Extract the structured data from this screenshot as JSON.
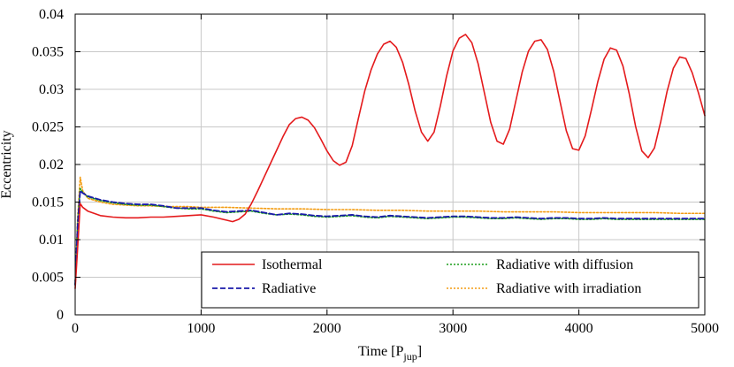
{
  "chart_data": {
    "type": "line",
    "xlabel": "Time [P",
    "xlabel_sub": "jup",
    "xlabel_end": "]",
    "ylabel": "Eccentricity",
    "xlim": [
      0,
      5000
    ],
    "ylim": [
      0,
      0.04
    ],
    "xticks": [
      0,
      1000,
      2000,
      3000,
      4000,
      5000
    ],
    "xtick_labels": [
      "0",
      "1000",
      "2000",
      "3000",
      "4000",
      "5000"
    ],
    "yticks": [
      0,
      0.005,
      0.01,
      0.015,
      0.02,
      0.025,
      0.03,
      0.035,
      0.04
    ],
    "ytick_labels": [
      "0",
      "0.005",
      "0.01",
      "0.015",
      "0.02",
      "0.025",
      "0.03",
      "0.035",
      "0.04"
    ],
    "grid": true,
    "legend_position": "bottom-right",
    "series": [
      {
        "name": "Isothermal",
        "color": "#e41a1c",
        "style": "solid",
        "points": [
          [
            0,
            0.0035
          ],
          [
            20,
            0.009
          ],
          [
            40,
            0.0148
          ],
          [
            60,
            0.0143
          ],
          [
            100,
            0.0138
          ],
          [
            150,
            0.0135
          ],
          [
            200,
            0.0132
          ],
          [
            300,
            0.013
          ],
          [
            400,
            0.0129
          ],
          [
            500,
            0.0129
          ],
          [
            600,
            0.013
          ],
          [
            700,
            0.013
          ],
          [
            800,
            0.0131
          ],
          [
            900,
            0.0132
          ],
          [
            1000,
            0.0133
          ],
          [
            1100,
            0.013
          ],
          [
            1200,
            0.0126
          ],
          [
            1250,
            0.0124
          ],
          [
            1300,
            0.0127
          ],
          [
            1350,
            0.0134
          ],
          [
            1400,
            0.0148
          ],
          [
            1450,
            0.0165
          ],
          [
            1500,
            0.0183
          ],
          [
            1550,
            0.0201
          ],
          [
            1600,
            0.0219
          ],
          [
            1650,
            0.0237
          ],
          [
            1700,
            0.0253
          ],
          [
            1750,
            0.0261
          ],
          [
            1800,
            0.0263
          ],
          [
            1850,
            0.0259
          ],
          [
            1900,
            0.0249
          ],
          [
            1950,
            0.0234
          ],
          [
            2000,
            0.0218
          ],
          [
            2050,
            0.0205
          ],
          [
            2100,
            0.0199
          ],
          [
            2150,
            0.0203
          ],
          [
            2200,
            0.0225
          ],
          [
            2250,
            0.0262
          ],
          [
            2300,
            0.0298
          ],
          [
            2350,
            0.0326
          ],
          [
            2400,
            0.0347
          ],
          [
            2450,
            0.036
          ],
          [
            2500,
            0.0364
          ],
          [
            2550,
            0.0356
          ],
          [
            2600,
            0.0336
          ],
          [
            2650,
            0.0306
          ],
          [
            2700,
            0.0271
          ],
          [
            2750,
            0.0243
          ],
          [
            2800,
            0.0231
          ],
          [
            2850,
            0.0243
          ],
          [
            2900,
            0.0278
          ],
          [
            2950,
            0.0318
          ],
          [
            3000,
            0.0351
          ],
          [
            3050,
            0.0368
          ],
          [
            3100,
            0.0373
          ],
          [
            3150,
            0.0362
          ],
          [
            3200,
            0.0334
          ],
          [
            3250,
            0.0295
          ],
          [
            3300,
            0.0256
          ],
          [
            3350,
            0.0231
          ],
          [
            3400,
            0.0227
          ],
          [
            3450,
            0.0247
          ],
          [
            3500,
            0.0285
          ],
          [
            3550,
            0.0323
          ],
          [
            3600,
            0.0351
          ],
          [
            3650,
            0.0364
          ],
          [
            3700,
            0.0366
          ],
          [
            3750,
            0.0353
          ],
          [
            3800,
            0.0324
          ],
          [
            3850,
            0.0284
          ],
          [
            3900,
            0.0245
          ],
          [
            3950,
            0.0221
          ],
          [
            4000,
            0.0219
          ],
          [
            4050,
            0.0238
          ],
          [
            4100,
            0.0273
          ],
          [
            4150,
            0.031
          ],
          [
            4200,
            0.034
          ],
          [
            4250,
            0.0355
          ],
          [
            4300,
            0.0352
          ],
          [
            4350,
            0.0331
          ],
          [
            4400,
            0.0294
          ],
          [
            4450,
            0.0251
          ],
          [
            4500,
            0.0218
          ],
          [
            4550,
            0.0209
          ],
          [
            4600,
            0.0222
          ],
          [
            4650,
            0.0257
          ],
          [
            4700,
            0.0297
          ],
          [
            4750,
            0.0328
          ],
          [
            4800,
            0.0343
          ],
          [
            4850,
            0.0341
          ],
          [
            4900,
            0.0322
          ],
          [
            4950,
            0.0295
          ],
          [
            5000,
            0.0265
          ]
        ]
      },
      {
        "name": "Radiative",
        "color": "#1a1aaa",
        "style": "dashed",
        "points": [
          [
            0,
            0.004
          ],
          [
            20,
            0.012
          ],
          [
            40,
            0.0165
          ],
          [
            60,
            0.0162
          ],
          [
            100,
            0.0158
          ],
          [
            200,
            0.0153
          ],
          [
            300,
            0.015
          ],
          [
            400,
            0.0148
          ],
          [
            500,
            0.0147
          ],
          [
            600,
            0.0147
          ],
          [
            700,
            0.0145
          ],
          [
            800,
            0.0142
          ],
          [
            900,
            0.0142
          ],
          [
            1000,
            0.0142
          ],
          [
            1100,
            0.0139
          ],
          [
            1200,
            0.0137
          ],
          [
            1300,
            0.0138
          ],
          [
            1400,
            0.0139
          ],
          [
            1500,
            0.0136
          ],
          [
            1600,
            0.0133
          ],
          [
            1700,
            0.0135
          ],
          [
            1800,
            0.0134
          ],
          [
            1900,
            0.0132
          ],
          [
            2000,
            0.0131
          ],
          [
            2100,
            0.0132
          ],
          [
            2200,
            0.0133
          ],
          [
            2300,
            0.0131
          ],
          [
            2400,
            0.013
          ],
          [
            2500,
            0.0132
          ],
          [
            2600,
            0.0131
          ],
          [
            2700,
            0.013
          ],
          [
            2800,
            0.0129
          ],
          [
            2900,
            0.013
          ],
          [
            3000,
            0.0131
          ],
          [
            3100,
            0.0131
          ],
          [
            3200,
            0.013
          ],
          [
            3300,
            0.0129
          ],
          [
            3400,
            0.0129
          ],
          [
            3500,
            0.013
          ],
          [
            3600,
            0.0129
          ],
          [
            3700,
            0.0128
          ],
          [
            3800,
            0.0129
          ],
          [
            3900,
            0.0129
          ],
          [
            4000,
            0.0128
          ],
          [
            4100,
            0.0128
          ],
          [
            4200,
            0.0129
          ],
          [
            4300,
            0.0128
          ],
          [
            4400,
            0.0128
          ],
          [
            4500,
            0.0128
          ],
          [
            4600,
            0.0128
          ],
          [
            4700,
            0.0128
          ],
          [
            4800,
            0.0128
          ],
          [
            4900,
            0.0128
          ],
          [
            5000,
            0.0128
          ]
        ]
      },
      {
        "name": "Radiative with diffusion",
        "color": "#1b9e1b",
        "style": "dotted",
        "points": [
          [
            0,
            0.004
          ],
          [
            20,
            0.0125
          ],
          [
            40,
            0.0168
          ],
          [
            60,
            0.0163
          ],
          [
            100,
            0.0157
          ],
          [
            200,
            0.0152
          ],
          [
            300,
            0.0149
          ],
          [
            400,
            0.0147
          ],
          [
            500,
            0.0146
          ],
          [
            600,
            0.0146
          ],
          [
            700,
            0.0144
          ],
          [
            800,
            0.0142
          ],
          [
            900,
            0.0141
          ],
          [
            1000,
            0.0141
          ],
          [
            1100,
            0.0138
          ],
          [
            1200,
            0.0136
          ],
          [
            1300,
            0.0137
          ],
          [
            1400,
            0.0138
          ],
          [
            1500,
            0.0135
          ],
          [
            1600,
            0.0133
          ],
          [
            1700,
            0.0134
          ],
          [
            1800,
            0.0133
          ],
          [
            1900,
            0.0131
          ],
          [
            2000,
            0.013
          ],
          [
            2100,
            0.0131
          ],
          [
            2200,
            0.0132
          ],
          [
            2300,
            0.013
          ],
          [
            2400,
            0.0129
          ],
          [
            2500,
            0.0131
          ],
          [
            2600,
            0.013
          ],
          [
            2700,
            0.0129
          ],
          [
            2800,
            0.0128
          ],
          [
            2900,
            0.0129
          ],
          [
            3000,
            0.013
          ],
          [
            3100,
            0.013
          ],
          [
            3200,
            0.0129
          ],
          [
            3300,
            0.0128
          ],
          [
            3400,
            0.0128
          ],
          [
            3500,
            0.0129
          ],
          [
            3600,
            0.0128
          ],
          [
            3700,
            0.0127
          ],
          [
            3800,
            0.0128
          ],
          [
            3900,
            0.0128
          ],
          [
            4000,
            0.0127
          ],
          [
            4100,
            0.0127
          ],
          [
            4200,
            0.0128
          ],
          [
            4300,
            0.0127
          ],
          [
            4400,
            0.0127
          ],
          [
            4500,
            0.0127
          ],
          [
            4600,
            0.0127
          ],
          [
            4700,
            0.0127
          ],
          [
            4800,
            0.0127
          ],
          [
            4900,
            0.0127
          ],
          [
            5000,
            0.0127
          ]
        ]
      },
      {
        "name": "Radiative with irradiation",
        "color": "#f39c12",
        "style": "dotted",
        "points": [
          [
            0,
            0.004
          ],
          [
            20,
            0.013
          ],
          [
            40,
            0.0183
          ],
          [
            60,
            0.0165
          ],
          [
            100,
            0.0155
          ],
          [
            200,
            0.015
          ],
          [
            300,
            0.0147
          ],
          [
            400,
            0.0146
          ],
          [
            500,
            0.0145
          ],
          [
            600,
            0.0145
          ],
          [
            700,
            0.0144
          ],
          [
            800,
            0.0144
          ],
          [
            900,
            0.0144
          ],
          [
            1000,
            0.0143
          ],
          [
            1200,
            0.0143
          ],
          [
            1400,
            0.0142
          ],
          [
            1600,
            0.0141
          ],
          [
            1800,
            0.0141
          ],
          [
            2000,
            0.014
          ],
          [
            2200,
            0.014
          ],
          [
            2400,
            0.0139
          ],
          [
            2600,
            0.0139
          ],
          [
            2800,
            0.0138
          ],
          [
            3000,
            0.0138
          ],
          [
            3200,
            0.0138
          ],
          [
            3400,
            0.0137
          ],
          [
            3600,
            0.0137
          ],
          [
            3800,
            0.0137
          ],
          [
            4000,
            0.0136
          ],
          [
            4200,
            0.0136
          ],
          [
            4400,
            0.0136
          ],
          [
            4600,
            0.0136
          ],
          [
            4800,
            0.0135
          ],
          [
            5000,
            0.0135
          ]
        ]
      }
    ]
  }
}
